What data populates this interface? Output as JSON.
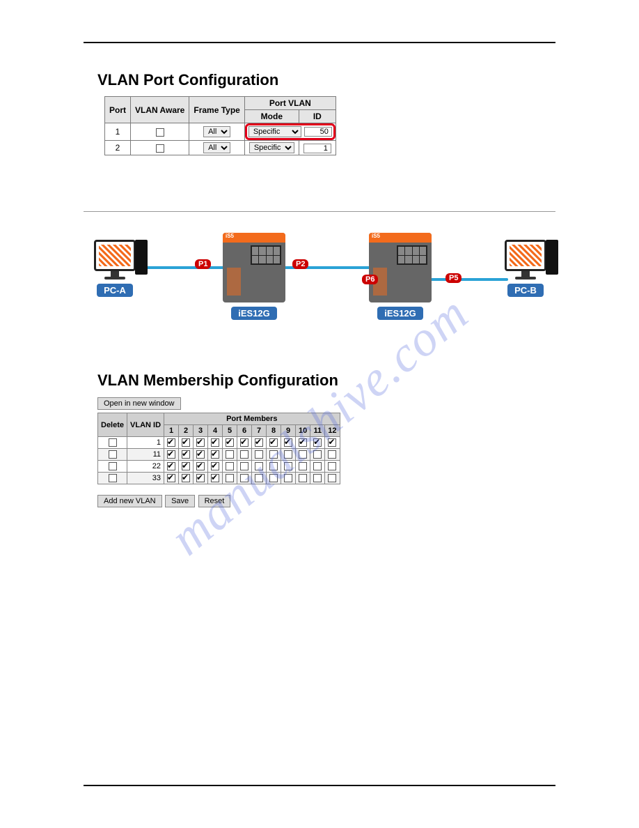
{
  "watermark": "manualshive.com",
  "section1": {
    "title": "VLAN Port Configuration",
    "headers": {
      "port": "Port",
      "aware": "VLAN Aware",
      "frame": "Frame Type",
      "pvlan": "Port VLAN",
      "mode": "Mode",
      "id": "ID"
    },
    "rows": [
      {
        "port": "1",
        "frame": "All",
        "mode": "Specific",
        "id": "50",
        "hl": true
      },
      {
        "port": "2",
        "frame": "All",
        "mode": "Specific",
        "id": "1",
        "hl": false
      }
    ]
  },
  "diagram": {
    "pcA": "PC-A",
    "pcB": "PC-B",
    "sw1": "iES12G",
    "sw2": "iES12G",
    "swbar": "iS5",
    "p1": "P1",
    "p2": "P2",
    "p5": "P5",
    "p6": "P6"
  },
  "section3": {
    "title": "VLAN Membership Configuration",
    "openBtn": "Open in new window",
    "headers": {
      "del": "Delete",
      "vid": "VLAN ID",
      "pm": "Port Members"
    },
    "cols": [
      "1",
      "2",
      "3",
      "4",
      "5",
      "6",
      "7",
      "8",
      "9",
      "10",
      "11",
      "12"
    ],
    "rows": [
      {
        "vid": "1",
        "chk": [
          1,
          1,
          1,
          1,
          1,
          1,
          1,
          1,
          1,
          1,
          1,
          1
        ]
      },
      {
        "vid": "11",
        "chk": [
          1,
          1,
          1,
          1,
          0,
          0,
          0,
          0,
          0,
          0,
          0,
          0
        ]
      },
      {
        "vid": "22",
        "chk": [
          1,
          1,
          1,
          1,
          0,
          0,
          0,
          0,
          0,
          0,
          0,
          0
        ]
      },
      {
        "vid": "33",
        "chk": [
          1,
          1,
          1,
          1,
          0,
          0,
          0,
          0,
          0,
          0,
          0,
          0
        ]
      }
    ],
    "addBtn": "Add new VLAN",
    "saveBtn": "Save",
    "resetBtn": "Reset"
  }
}
